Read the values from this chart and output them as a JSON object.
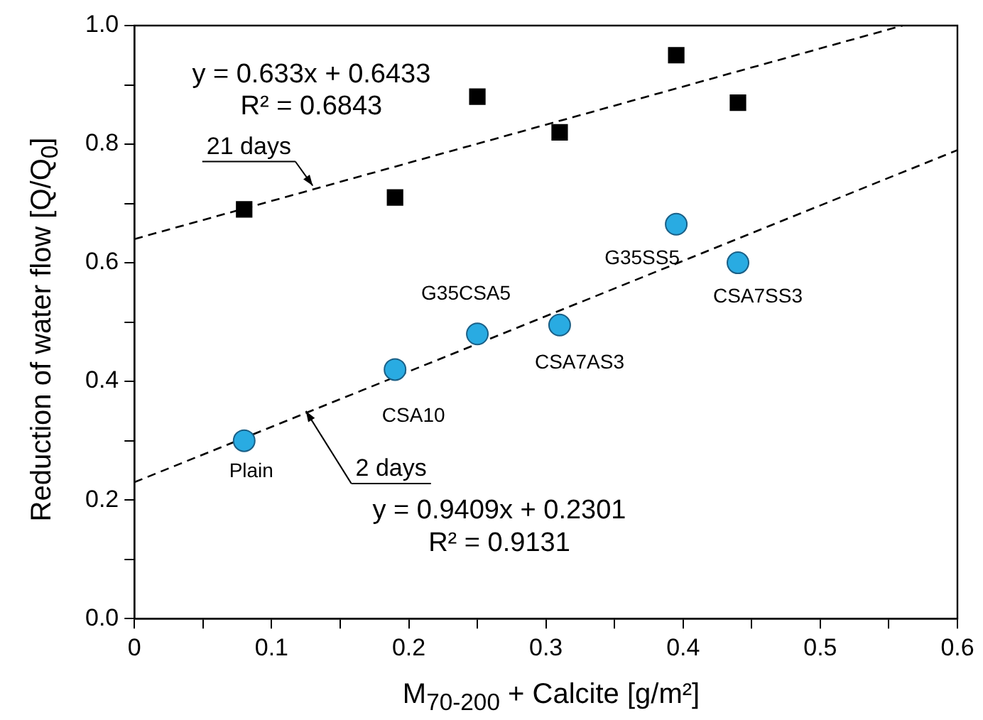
{
  "chart_data": {
    "type": "scatter",
    "xlabel": "M$_{70-200}$ + Calcite [g/m²]",
    "ylabel": "Reduction of water flow [Q/Q$_{0}$]",
    "xlim": [
      0,
      0.6
    ],
    "xticks": [
      0,
      {
        "value": 0.05,
        "label": null
      },
      0.1,
      {
        "value": 0.15,
        "label": null
      },
      0.2,
      {
        "value": 0.25,
        "label": null
      },
      0.3,
      {
        "value": 0.35,
        "label": null
      },
      0.4,
      {
        "value": 0.45,
        "label": null
      },
      0.5,
      {
        "value": 0.55,
        "label": null
      },
      0.6
    ],
    "ylim": [
      0,
      1
    ],
    "yticks": [
      {
        "value": 0,
        "label": "0.0"
      },
      {
        "value": 0.1,
        "label": null
      },
      {
        "value": 0.2,
        "label": "0.2"
      },
      {
        "value": 0.3,
        "label": null
      },
      {
        "value": 0.4,
        "label": "0.4"
      },
      {
        "value": 0.5,
        "label": null
      },
      {
        "value": 0.6,
        "label": "0.6"
      },
      {
        "value": 0.7,
        "label": null
      },
      {
        "value": 0.8,
        "label": "0.8"
      },
      {
        "value": 0.9,
        "label": null
      },
      {
        "value": 1,
        "label": "1.0"
      }
    ],
    "series": [
      {
        "type": "scatter",
        "marker": "square",
        "color": "#000000",
        "x": [
          0.08,
          0.19,
          0.25,
          0.31,
          0.395,
          0.44
        ],
        "values": [
          0.69,
          0.71,
          0.88,
          0.82,
          0.95,
          0.87
        ]
      },
      {
        "type": "scatter",
        "marker": "circle",
        "color": "#29abe2",
        "x": [
          0.08,
          0.19,
          0.25,
          0.31,
          0.395,
          0.44
        ],
        "values": [
          0.3,
          0.42,
          0.48,
          0.495,
          0.665,
          0.6
        ]
      },
      {
        "type": "line",
        "line_style": "dashed",
        "marker": "none",
        "color": "#000000",
        "x": [
          0,
          0.56
        ],
        "values": [
          0.64,
          1.0
        ]
      },
      {
        "type": "line",
        "line_style": "dashed",
        "marker": "none",
        "color": "#000000",
        "x": [
          0,
          0.6
        ],
        "values": [
          0.23,
          0.79
        ]
      }
    ],
    "annotations": [
      "y = 0.633x + 0.6433",
      "R² = 0.6843",
      "y = 0.9409x + 0.2301",
      "R² = 0.9131",
      {
        "text": "21 days",
        "x": 0.13,
        "y": 0.73
      },
      {
        "text": "2 days",
        "x": 0.125,
        "y": 0.35
      },
      {
        "text": "Plain",
        "x": 0.08,
        "y": 0.3
      },
      {
        "text": "CSA10",
        "x": 0.19,
        "y": 0.42
      },
      {
        "text": "G35CSA5",
        "x": 0.25,
        "y": 0.48
      },
      {
        "text": "CSA7AS3",
        "x": 0.31,
        "y": 0.495
      },
      {
        "text": "G35SS5",
        "x": 0.395,
        "y": 0.665
      },
      {
        "text": "CSA7SS3",
        "x": 0.44,
        "y": 0.6
      }
    ]
  }
}
